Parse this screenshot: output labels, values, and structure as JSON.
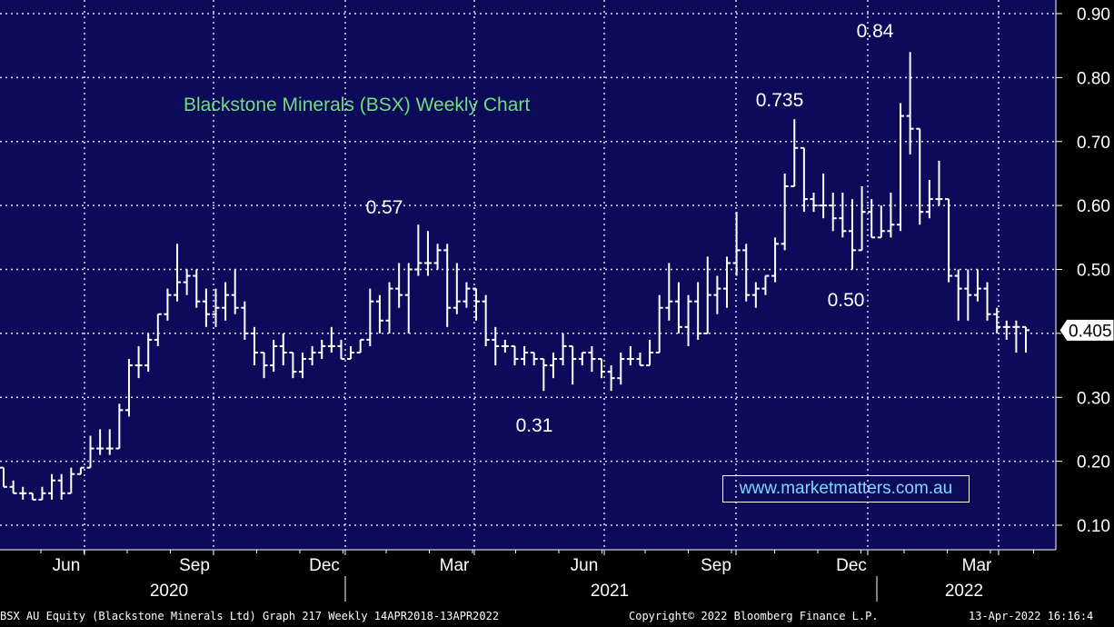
{
  "colors": {
    "background": "#0b0b59",
    "grid": "#dfe3ef",
    "bars": "#ffffff",
    "title": "#74dc7e",
    "watermark": "#7fd8ff",
    "last_price_box": "#ffffff"
  },
  "chart_data": {
    "type": "ohlc-bar",
    "title": "Blackstone Minerals (BSX) Weekly Chart",
    "frequency": "Weekly",
    "ylim": [
      0.05,
      0.95
    ],
    "y_ticks": [
      "0.10",
      "0.20",
      "0.30",
      "0.40",
      "0.50",
      "0.60",
      "0.70",
      "0.80",
      "0.90"
    ],
    "x_month_labels": [
      "Jun",
      "Sep",
      "Dec",
      "Mar",
      "Jun",
      "Sep",
      "Dec",
      "Mar"
    ],
    "x_year_labels": [
      "2020",
      "2021",
      "2022"
    ],
    "grid": true,
    "last_price": "0.405",
    "annotations": [
      "0.84",
      "0.735",
      "0.57",
      "0.50",
      "0.31"
    ],
    "watermark": "www.marketmatters.com.au",
    "bars": [
      {
        "o": 0.19,
        "h": 0.19,
        "l": 0.16,
        "c": 0.16
      },
      {
        "o": 0.16,
        "h": 0.17,
        "l": 0.15,
        "c": 0.15
      },
      {
        "o": 0.15,
        "h": 0.16,
        "l": 0.14,
        "c": 0.15
      },
      {
        "o": 0.15,
        "h": 0.15,
        "l": 0.14,
        "c": 0.14
      },
      {
        "o": 0.14,
        "h": 0.16,
        "l": 0.14,
        "c": 0.15
      },
      {
        "o": 0.15,
        "h": 0.18,
        "l": 0.14,
        "c": 0.17
      },
      {
        "o": 0.17,
        "h": 0.18,
        "l": 0.14,
        "c": 0.15
      },
      {
        "o": 0.15,
        "h": 0.19,
        "l": 0.15,
        "c": 0.18
      },
      {
        "o": 0.18,
        "h": 0.19,
        "l": 0.18,
        "c": 0.19
      },
      {
        "o": 0.19,
        "h": 0.24,
        "l": 0.19,
        "c": 0.22
      },
      {
        "o": 0.22,
        "h": 0.25,
        "l": 0.21,
        "c": 0.22
      },
      {
        "o": 0.22,
        "h": 0.25,
        "l": 0.21,
        "c": 0.22
      },
      {
        "o": 0.22,
        "h": 0.29,
        "l": 0.22,
        "c": 0.28
      },
      {
        "o": 0.28,
        "h": 0.36,
        "l": 0.27,
        "c": 0.35
      },
      {
        "o": 0.35,
        "h": 0.38,
        "l": 0.33,
        "c": 0.35
      },
      {
        "o": 0.35,
        "h": 0.4,
        "l": 0.34,
        "c": 0.39
      },
      {
        "o": 0.39,
        "h": 0.43,
        "l": 0.38,
        "c": 0.43
      },
      {
        "o": 0.43,
        "h": 0.47,
        "l": 0.42,
        "c": 0.46
      },
      {
        "o": 0.46,
        "h": 0.54,
        "l": 0.45,
        "c": 0.48
      },
      {
        "o": 0.48,
        "h": 0.5,
        "l": 0.46,
        "c": 0.49
      },
      {
        "o": 0.49,
        "h": 0.5,
        "l": 0.44,
        "c": 0.45
      },
      {
        "o": 0.45,
        "h": 0.47,
        "l": 0.41,
        "c": 0.43
      },
      {
        "o": 0.43,
        "h": 0.47,
        "l": 0.41,
        "c": 0.44
      },
      {
        "o": 0.44,
        "h": 0.48,
        "l": 0.42,
        "c": 0.46
      },
      {
        "o": 0.46,
        "h": 0.5,
        "l": 0.43,
        "c": 0.44
      },
      {
        "o": 0.44,
        "h": 0.45,
        "l": 0.39,
        "c": 0.4
      },
      {
        "o": 0.4,
        "h": 0.41,
        "l": 0.35,
        "c": 0.37
      },
      {
        "o": 0.37,
        "h": 0.37,
        "l": 0.33,
        "c": 0.35
      },
      {
        "o": 0.35,
        "h": 0.39,
        "l": 0.34,
        "c": 0.38
      },
      {
        "o": 0.38,
        "h": 0.4,
        "l": 0.35,
        "c": 0.37
      },
      {
        "o": 0.37,
        "h": 0.37,
        "l": 0.33,
        "c": 0.34
      },
      {
        "o": 0.34,
        "h": 0.37,
        "l": 0.33,
        "c": 0.36
      },
      {
        "o": 0.36,
        "h": 0.38,
        "l": 0.35,
        "c": 0.37
      },
      {
        "o": 0.37,
        "h": 0.39,
        "l": 0.36,
        "c": 0.38
      },
      {
        "o": 0.38,
        "h": 0.41,
        "l": 0.37,
        "c": 0.38
      },
      {
        "o": 0.38,
        "h": 0.39,
        "l": 0.36,
        "c": 0.36
      },
      {
        "o": 0.36,
        "h": 0.38,
        "l": 0.36,
        "c": 0.37
      },
      {
        "o": 0.37,
        "h": 0.39,
        "l": 0.37,
        "c": 0.39
      },
      {
        "o": 0.39,
        "h": 0.47,
        "l": 0.38,
        "c": 0.45
      },
      {
        "o": 0.45,
        "h": 0.46,
        "l": 0.4,
        "c": 0.42
      },
      {
        "o": 0.42,
        "h": 0.48,
        "l": 0.4,
        "c": 0.47
      },
      {
        "o": 0.47,
        "h": 0.51,
        "l": 0.44,
        "c": 0.46
      },
      {
        "o": 0.46,
        "h": 0.51,
        "l": 0.4,
        "c": 0.5
      },
      {
        "o": 0.5,
        "h": 0.57,
        "l": 0.49,
        "c": 0.51
      },
      {
        "o": 0.51,
        "h": 0.56,
        "l": 0.49,
        "c": 0.51
      },
      {
        "o": 0.51,
        "h": 0.54,
        "l": 0.5,
        "c": 0.53
      },
      {
        "o": 0.53,
        "h": 0.54,
        "l": 0.41,
        "c": 0.44
      },
      {
        "o": 0.44,
        "h": 0.51,
        "l": 0.43,
        "c": 0.45
      },
      {
        "o": 0.45,
        "h": 0.48,
        "l": 0.44,
        "c": 0.47
      },
      {
        "o": 0.47,
        "h": 0.47,
        "l": 0.42,
        "c": 0.45
      },
      {
        "o": 0.45,
        "h": 0.46,
        "l": 0.38,
        "c": 0.39
      },
      {
        "o": 0.39,
        "h": 0.41,
        "l": 0.35,
        "c": 0.38
      },
      {
        "o": 0.38,
        "h": 0.39,
        "l": 0.37,
        "c": 0.38
      },
      {
        "o": 0.38,
        "h": 0.38,
        "l": 0.35,
        "c": 0.36
      },
      {
        "o": 0.36,
        "h": 0.38,
        "l": 0.35,
        "c": 0.37
      },
      {
        "o": 0.37,
        "h": 0.37,
        "l": 0.35,
        "c": 0.36
      },
      {
        "o": 0.36,
        "h": 0.36,
        "l": 0.31,
        "c": 0.35
      },
      {
        "o": 0.35,
        "h": 0.37,
        "l": 0.33,
        "c": 0.36
      },
      {
        "o": 0.36,
        "h": 0.4,
        "l": 0.35,
        "c": 0.38
      },
      {
        "o": 0.38,
        "h": 0.38,
        "l": 0.32,
        "c": 0.36
      },
      {
        "o": 0.36,
        "h": 0.37,
        "l": 0.35,
        "c": 0.37
      },
      {
        "o": 0.37,
        "h": 0.38,
        "l": 0.34,
        "c": 0.36
      },
      {
        "o": 0.36,
        "h": 0.36,
        "l": 0.33,
        "c": 0.34
      },
      {
        "o": 0.34,
        "h": 0.35,
        "l": 0.31,
        "c": 0.33
      },
      {
        "o": 0.33,
        "h": 0.37,
        "l": 0.32,
        "c": 0.36
      },
      {
        "o": 0.36,
        "h": 0.38,
        "l": 0.35,
        "c": 0.36
      },
      {
        "o": 0.36,
        "h": 0.37,
        "l": 0.35,
        "c": 0.35
      },
      {
        "o": 0.35,
        "h": 0.39,
        "l": 0.35,
        "c": 0.37
      },
      {
        "o": 0.37,
        "h": 0.46,
        "l": 0.37,
        "c": 0.44
      },
      {
        "o": 0.44,
        "h": 0.51,
        "l": 0.42,
        "c": 0.45
      },
      {
        "o": 0.45,
        "h": 0.48,
        "l": 0.4,
        "c": 0.41
      },
      {
        "o": 0.41,
        "h": 0.46,
        "l": 0.38,
        "c": 0.45
      },
      {
        "o": 0.45,
        "h": 0.48,
        "l": 0.39,
        "c": 0.4
      },
      {
        "o": 0.4,
        "h": 0.52,
        "l": 0.4,
        "c": 0.46
      },
      {
        "o": 0.46,
        "h": 0.49,
        "l": 0.43,
        "c": 0.47
      },
      {
        "o": 0.47,
        "h": 0.52,
        "l": 0.44,
        "c": 0.51
      },
      {
        "o": 0.51,
        "h": 0.59,
        "l": 0.49,
        "c": 0.53
      },
      {
        "o": 0.53,
        "h": 0.54,
        "l": 0.45,
        "c": 0.46
      },
      {
        "o": 0.46,
        "h": 0.48,
        "l": 0.44,
        "c": 0.47
      },
      {
        "o": 0.47,
        "h": 0.49,
        "l": 0.46,
        "c": 0.49
      },
      {
        "o": 0.49,
        "h": 0.55,
        "l": 0.48,
        "c": 0.54
      },
      {
        "o": 0.54,
        "h": 0.65,
        "l": 0.53,
        "c": 0.63
      },
      {
        "o": 0.63,
        "h": 0.735,
        "l": 0.63,
        "c": 0.69
      },
      {
        "o": 0.69,
        "h": 0.69,
        "l": 0.59,
        "c": 0.61
      },
      {
        "o": 0.61,
        "h": 0.62,
        "l": 0.59,
        "c": 0.6
      },
      {
        "o": 0.6,
        "h": 0.65,
        "l": 0.58,
        "c": 0.6
      },
      {
        "o": 0.6,
        "h": 0.62,
        "l": 0.56,
        "c": 0.58
      },
      {
        "o": 0.58,
        "h": 0.62,
        "l": 0.55,
        "c": 0.56
      },
      {
        "o": 0.56,
        "h": 0.61,
        "l": 0.5,
        "c": 0.53
      },
      {
        "o": 0.53,
        "h": 0.63,
        "l": 0.53,
        "c": 0.59
      },
      {
        "o": 0.59,
        "h": 0.61,
        "l": 0.55,
        "c": 0.55
      },
      {
        "o": 0.55,
        "h": 0.6,
        "l": 0.55,
        "c": 0.56
      },
      {
        "o": 0.56,
        "h": 0.62,
        "l": 0.55,
        "c": 0.57
      },
      {
        "o": 0.57,
        "h": 0.76,
        "l": 0.56,
        "c": 0.74
      },
      {
        "o": 0.74,
        "h": 0.84,
        "l": 0.68,
        "c": 0.72
      },
      {
        "o": 0.72,
        "h": 0.72,
        "l": 0.57,
        "c": 0.59
      },
      {
        "o": 0.59,
        "h": 0.64,
        "l": 0.58,
        "c": 0.61
      },
      {
        "o": 0.61,
        "h": 0.67,
        "l": 0.6,
        "c": 0.61
      },
      {
        "o": 0.61,
        "h": 0.61,
        "l": 0.48,
        "c": 0.49
      },
      {
        "o": 0.49,
        "h": 0.5,
        "l": 0.42,
        "c": 0.47
      },
      {
        "o": 0.47,
        "h": 0.5,
        "l": 0.42,
        "c": 0.46
      },
      {
        "o": 0.46,
        "h": 0.5,
        "l": 0.45,
        "c": 0.47
      },
      {
        "o": 0.47,
        "h": 0.48,
        "l": 0.42,
        "c": 0.43
      },
      {
        "o": 0.43,
        "h": 0.44,
        "l": 0.4,
        "c": 0.41
      },
      {
        "o": 0.41,
        "h": 0.42,
        "l": 0.39,
        "c": 0.41
      },
      {
        "o": 0.41,
        "h": 0.42,
        "l": 0.37,
        "c": 0.41
      },
      {
        "o": 0.41,
        "h": 0.41,
        "l": 0.37,
        "c": 0.405
      }
    ]
  },
  "footer": {
    "left": "BSX AU Equity (Blackstone Minerals Ltd) Graph 217  Weekly 14APR2018-13APR2022",
    "center": "Copyright© 2022 Bloomberg Finance L.P.",
    "right": "13-Apr-2022 16:16:4"
  }
}
